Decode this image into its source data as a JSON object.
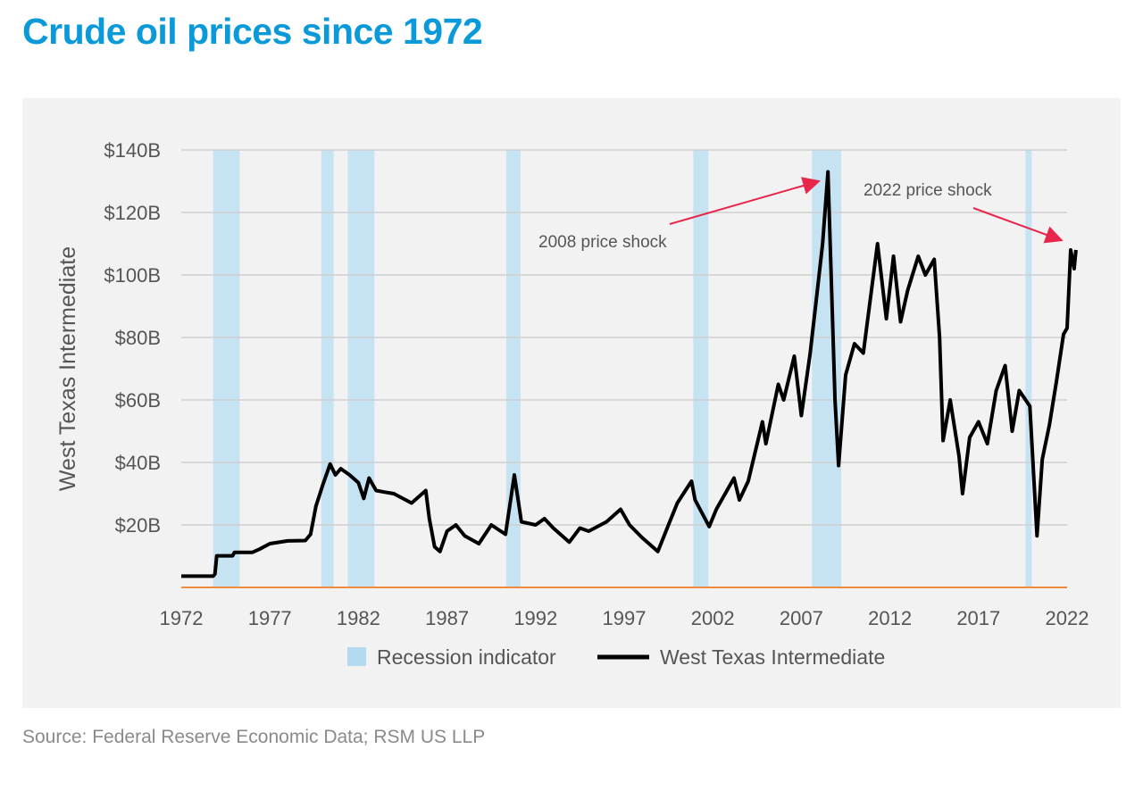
{
  "title": "Crude oil prices since 1972",
  "source": "Source: Federal Reserve Economic Data; RSM US LLP",
  "colors": {
    "title": "#0a9ad9",
    "recession": "#c5e3f2",
    "line": "#000000",
    "baseline": "#f08a3c",
    "arrow": "#e8254a",
    "grid": "#d0d0d0"
  },
  "chart_data": {
    "type": "line",
    "title": "Crude oil prices since 1972",
    "ylabel": "West Texas Intermediate",
    "xlabel": "",
    "xlim": [
      1972,
      2022
    ],
    "ylim": [
      0,
      140
    ],
    "grid": true,
    "legend_position": "bottom",
    "x_ticks": [
      "1972",
      "1977",
      "1982",
      "1987",
      "1992",
      "1997",
      "2002",
      "2007",
      "2012",
      "2017",
      "2022"
    ],
    "y_ticks": [
      {
        "value": 20,
        "label": "$20B"
      },
      {
        "value": 40,
        "label": "$40B"
      },
      {
        "value": 60,
        "label": "$60B"
      },
      {
        "value": 80,
        "label": "$80B"
      },
      {
        "value": 100,
        "label": "$100B"
      },
      {
        "value": 120,
        "label": "$120B"
      },
      {
        "value": 140,
        "label": "$140B"
      }
    ],
    "legend": [
      "Recession indicator",
      "West Texas Intermediate"
    ],
    "recessions": [
      [
        1973.8,
        1975.3
      ],
      [
        1979.9,
        1980.6
      ],
      [
        1981.4,
        1982.9
      ],
      [
        1990.35,
        1991.15
      ],
      [
        2000.9,
        2001.75
      ],
      [
        2007.6,
        2009.25
      ],
      [
        2019.65,
        2020.0
      ]
    ],
    "series": [
      {
        "name": "West Texas Intermediate",
        "x": [
          1972,
          1973.8,
          1973.9,
          1974.0,
          1974.9,
          1975.0,
          1976.0,
          1976.4,
          1977.0,
          1978.0,
          1979.0,
          1979.3,
          1979.6,
          1980.0,
          1980.4,
          1980.7,
          1981.0,
          1981.5,
          1982.0,
          1982.3,
          1982.6,
          1983.0,
          1983.5,
          1984.0,
          1985.0,
          1985.8,
          1986.0,
          1986.3,
          1986.6,
          1987.0,
          1987.5,
          1988.0,
          1988.8,
          1989.5,
          1990.3,
          1990.8,
          1991.2,
          1992.0,
          1992.5,
          1993.0,
          1993.9,
          1994.5,
          1995.0,
          1996.0,
          1996.8,
          1997.3,
          1998.0,
          1998.9,
          1999.5,
          2000.0,
          2000.8,
          2001.0,
          2001.8,
          2002.2,
          2003.2,
          2003.5,
          2004.0,
          2004.8,
          2005.0,
          2005.7,
          2006.0,
          2006.6,
          2007.0,
          2007.5,
          2007.9,
          2008.2,
          2008.5,
          2008.9,
          2009.1,
          2009.5,
          2010.0,
          2010.5,
          2011.3,
          2011.8,
          2012.2,
          2012.6,
          2013.0,
          2013.6,
          2014.0,
          2014.5,
          2014.8,
          2015.0,
          2015.4,
          2015.9,
          2016.1,
          2016.5,
          2017.0,
          2017.5,
          2018.0,
          2018.5,
          2018.9,
          2019.3,
          2019.9,
          2020.3,
          2020.6,
          2021.0,
          2021.4,
          2021.8,
          2022.0,
          2022.2,
          2022.4,
          2022.5
        ],
        "values": [
          3.6,
          3.6,
          4.3,
          10.1,
          10.1,
          11.2,
          11.2,
          12.2,
          14.0,
          14.9,
          15.0,
          17,
          26,
          33,
          39.5,
          36,
          38,
          36,
          33.5,
          28.5,
          35,
          31,
          30.5,
          30,
          27,
          31,
          22,
          13,
          11.5,
          18,
          20,
          16.5,
          14,
          20,
          17,
          36,
          21,
          20,
          22,
          19,
          14.5,
          19,
          18,
          21,
          25,
          20,
          16,
          11.5,
          20,
          27,
          34,
          28,
          19.5,
          25,
          35,
          28,
          34,
          53,
          46,
          65,
          60,
          74,
          55,
          75,
          95,
          110,
          133,
          60,
          39,
          68,
          78,
          75,
          110,
          86,
          106,
          85,
          95,
          106,
          100,
          105,
          80,
          47,
          60,
          42,
          30,
          48,
          53,
          46,
          63,
          71,
          50,
          63,
          58,
          16.5,
          41,
          52,
          66,
          81,
          83,
          108,
          102,
          108
        ]
      }
    ],
    "annotations": [
      {
        "text": "2008 price shock",
        "points_to": [
          2008.4,
          133
        ]
      },
      {
        "text": "2022 price shock",
        "points_to": [
          2022.2,
          109
        ]
      }
    ]
  }
}
